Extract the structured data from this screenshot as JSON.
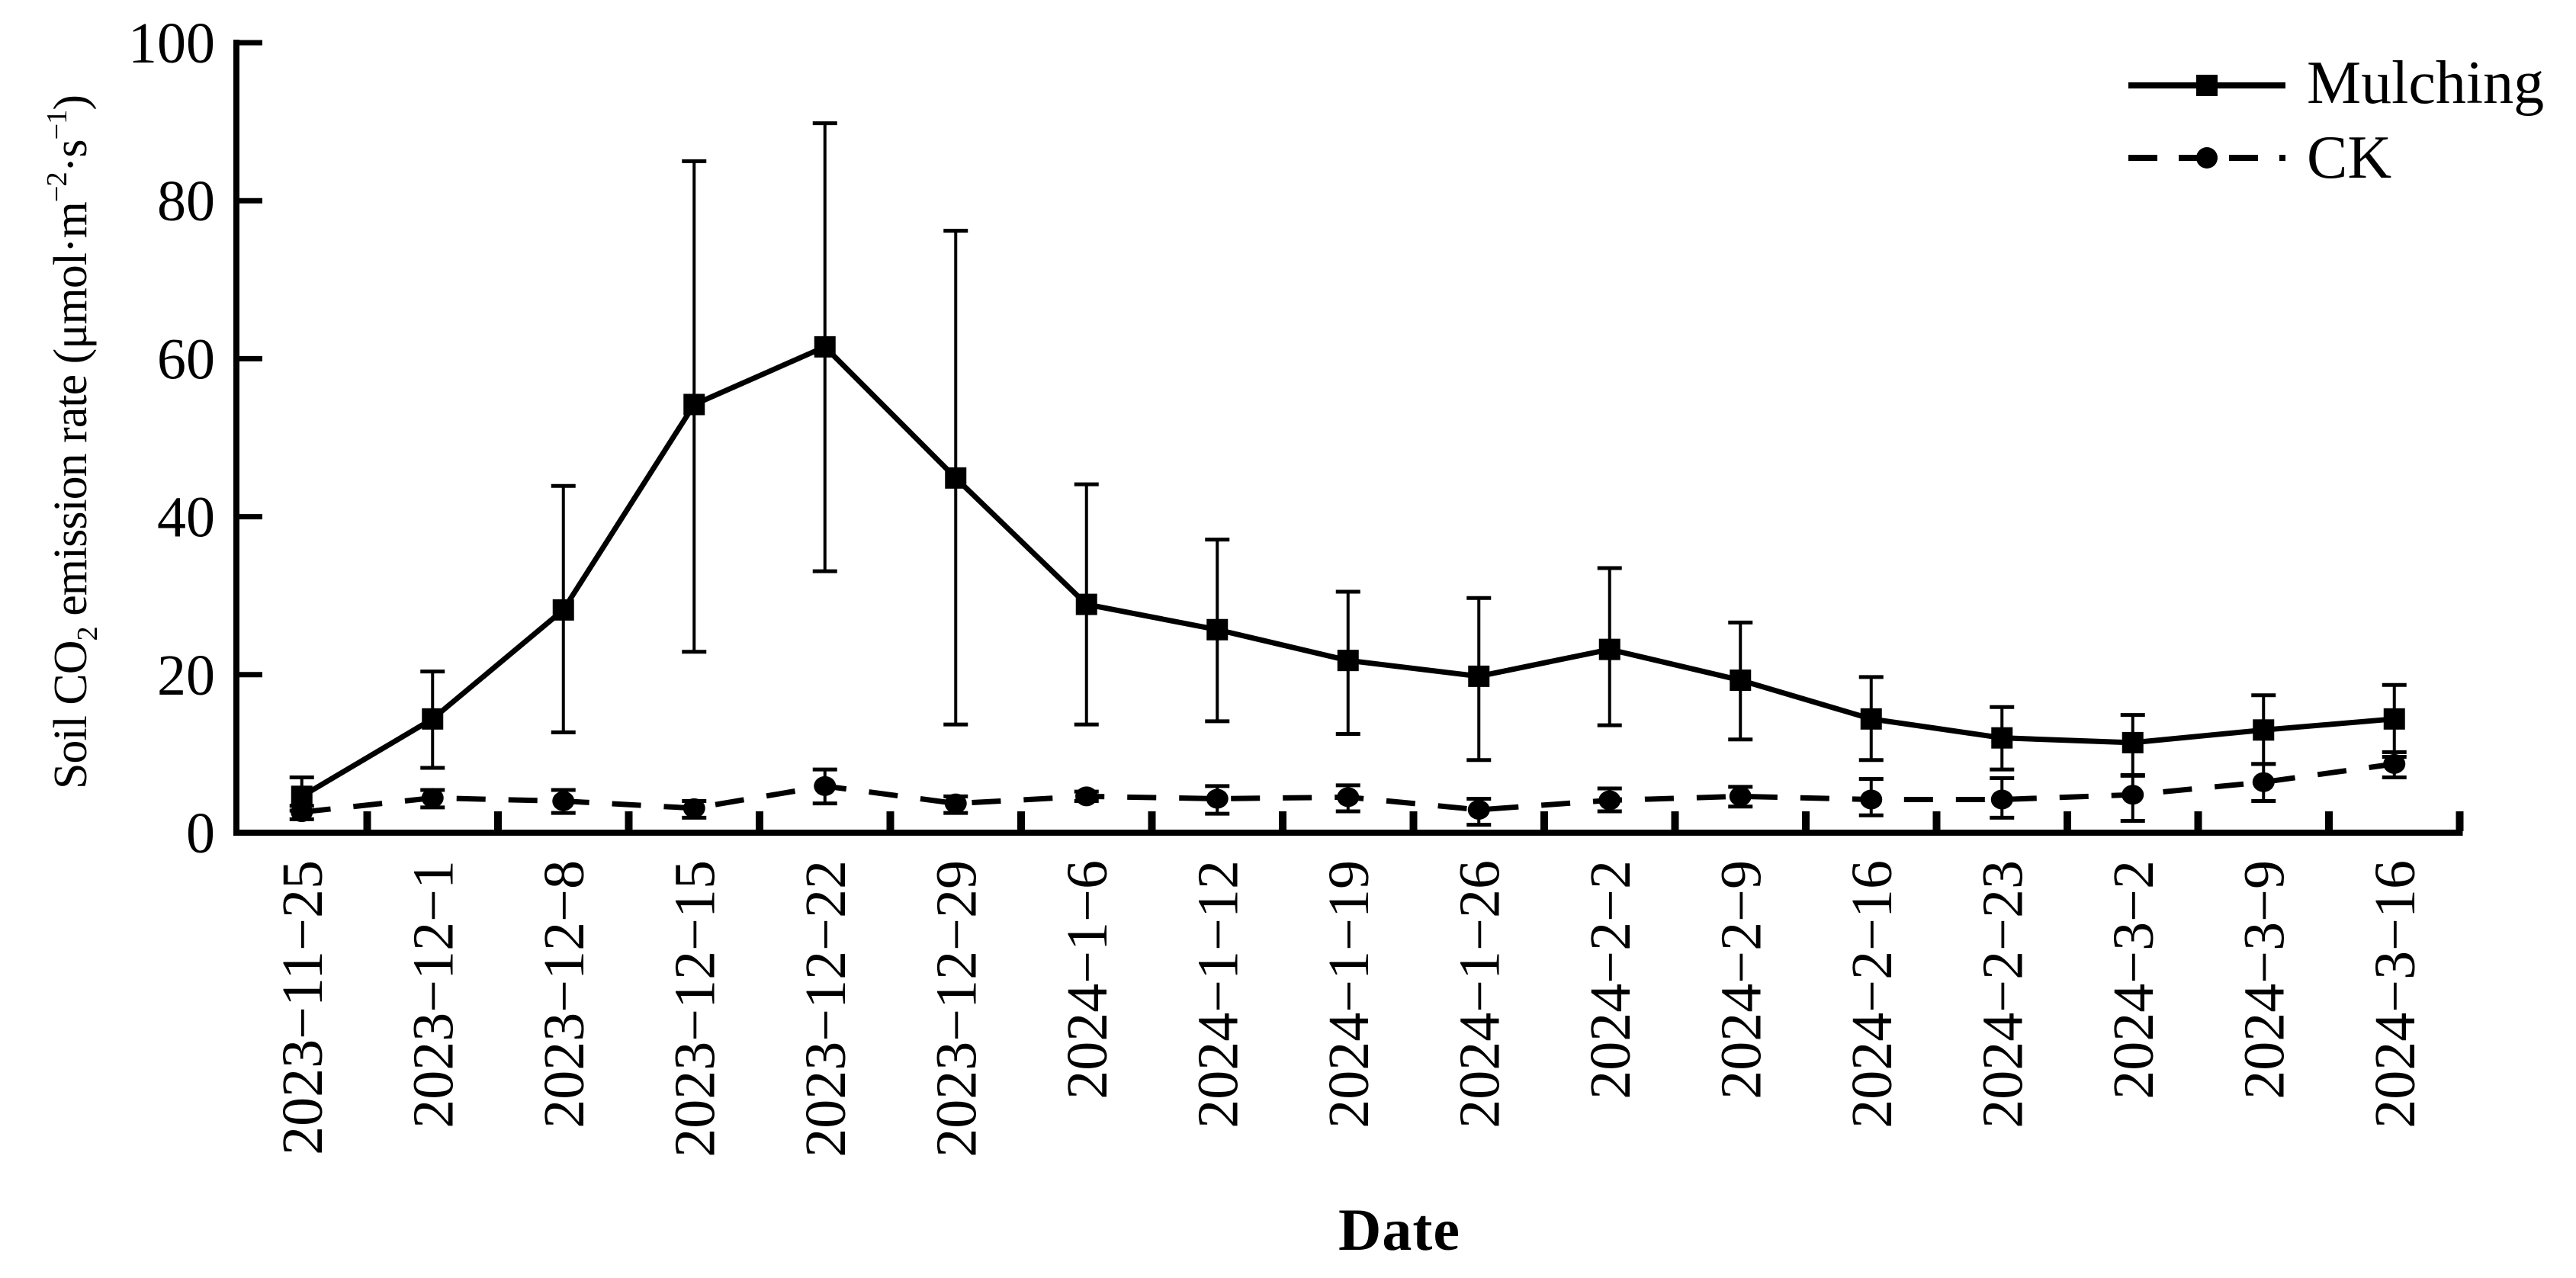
{
  "chart_data": {
    "type": "line",
    "title": "",
    "xlabel": "Date",
    "ylabel": "Soil CO2 emission rate (μmol·m−2·s−1)",
    "ylim": [
      0,
      100
    ],
    "yticks": [
      0,
      20,
      40,
      60,
      80,
      100
    ],
    "grid": false,
    "legend_position": "top-right",
    "x_tick_rotation_deg": 90,
    "categories": [
      "2023−11−25",
      "2023−12−1",
      "2023−12−8",
      "2023−12−15",
      "2023−12−22",
      "2023−12−29",
      "2024−1−6",
      "2024−1−12",
      "2024−1−19",
      "2024−1−26",
      "2024−2−2",
      "2024−2−9",
      "2024−2−16",
      "2024−2−23",
      "2024−3−2",
      "2024−3−9",
      "2024−3−16"
    ],
    "series": [
      {
        "name": "Mulching",
        "marker": "square",
        "line_style": "solid",
        "color": "#000000",
        "values": [
          4.6,
          14.4,
          28.2,
          54.2,
          61.5,
          44.9,
          28.9,
          25.7,
          21.8,
          19.8,
          23.2,
          19.3,
          14.4,
          12.0,
          11.4,
          13.0,
          14.4
        ],
        "err_up": [
          2.4,
          6.0,
          15.7,
          30.8,
          28.3,
          31.3,
          15.2,
          11.4,
          8.7,
          9.9,
          10.3,
          7.3,
          5.3,
          3.9,
          3.5,
          4.4,
          4.3
        ],
        "err_down": [
          1.8,
          6.2,
          15.5,
          31.3,
          28.4,
          31.2,
          15.2,
          11.6,
          9.3,
          10.6,
          9.6,
          7.5,
          5.2,
          4.0,
          4.2,
          4.3,
          4.8
        ]
      },
      {
        "name": "CK",
        "marker": "circle",
        "line_style": "dashed",
        "color": "#000000",
        "values": [
          2.6,
          4.4,
          4.0,
          3.1,
          5.9,
          3.7,
          4.6,
          4.3,
          4.5,
          2.9,
          4.1,
          4.6,
          4.2,
          4.2,
          4.8,
          6.4,
          8.7
        ],
        "err_up": [
          0.8,
          1.0,
          1.4,
          0.9,
          2.1,
          0.9,
          0.6,
          1.6,
          1.5,
          1.4,
          1.5,
          1.2,
          2.6,
          2.7,
          2.5,
          2.3,
          1.5
        ],
        "err_down": [
          0.9,
          1.2,
          1.5,
          1.2,
          2.2,
          1.2,
          0.6,
          1.9,
          1.8,
          1.9,
          1.4,
          1.3,
          2.0,
          2.3,
          3.3,
          2.4,
          1.7
        ]
      }
    ]
  },
  "labels": {
    "y": {
      "pre": "Soil CO",
      "sub": "2",
      "mid1": " emission rate (μmol·m",
      "sup1": "−2",
      "mid2": "·s",
      "sup2": "−1",
      "post": ")"
    }
  },
  "colors": {
    "foreground": "#000000",
    "background": "#ffffff"
  }
}
